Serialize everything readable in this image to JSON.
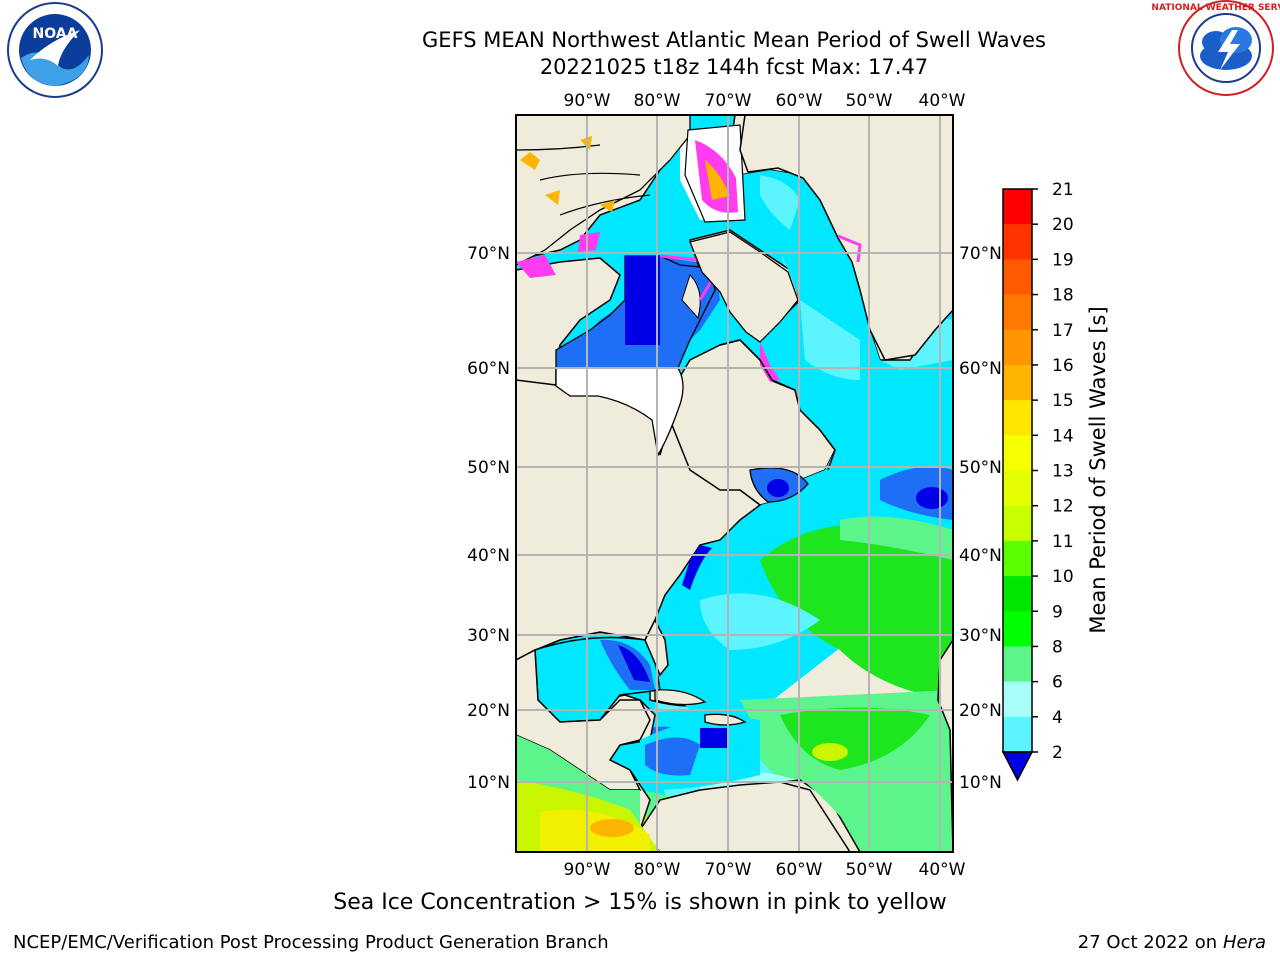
{
  "header": {
    "title_line1": "GEFS MEAN Northwest Atlantic Mean Period of Swell Waves",
    "title_line2": "20221025 t18z 144h fcst   Max: 17.47"
  },
  "logos": {
    "noaa_text": "NOAA",
    "noaa_ring": "NATIONAL OCEANIC AND ATMOSPHERIC ADMINISTRATION · U.S. DEPARTMENT OF COMMERCE",
    "nws_ring": "NATIONAL WEATHER SERVICE"
  },
  "map": {
    "lon_labels": [
      "90°W",
      "80°W",
      "70°W",
      "60°W",
      "50°W",
      "40°W"
    ],
    "lat_labels": [
      "70°N",
      "60°N",
      "50°N",
      "40°N",
      "30°N",
      "20°N",
      "10°N"
    ],
    "colors": {
      "land": "#efecdc",
      "deep_blue": "#0000e6",
      "blue": "#1e6ff5",
      "cyan": "#00e8ff",
      "light_cyan": "#5cf5ff",
      "pale_cyan": "#a8fff9",
      "green_light": "#5cf58c",
      "green": "#1ee61e",
      "yellow_green": "#c8f500",
      "yellow": "#f0f000",
      "orange": "#ffb400",
      "ice_pink": "#ff3cf0",
      "grid": "#b4b4b4"
    }
  },
  "colorbar": {
    "label": "Mean Period of Swell Waves [s]",
    "ticks": [
      "21",
      "20",
      "19",
      "18",
      "17",
      "16",
      "15",
      "14",
      "13",
      "12",
      "11",
      "10",
      "9",
      "8",
      "6",
      "4",
      "2"
    ],
    "colors": [
      "#ff0000",
      "#ff3200",
      "#ff5a00",
      "#ff7800",
      "#ff9600",
      "#ffb400",
      "#ffe600",
      "#f5ff00",
      "#e6ff00",
      "#c8ff00",
      "#5aff00",
      "#00e600",
      "#00ff00",
      "#5cf58c",
      "#a8fff9",
      "#5cf5ff",
      "#00e8ff",
      "#1e6ff5"
    ],
    "extend_color": "#0000e6"
  },
  "footer": {
    "caption": "Sea Ice Concentration > 15% is shown in pink to yellow",
    "credit": "NCEP/EMC/Verification Post Processing Product Generation Branch",
    "date": "27 Oct 2022 on ",
    "machine": "Hera"
  }
}
